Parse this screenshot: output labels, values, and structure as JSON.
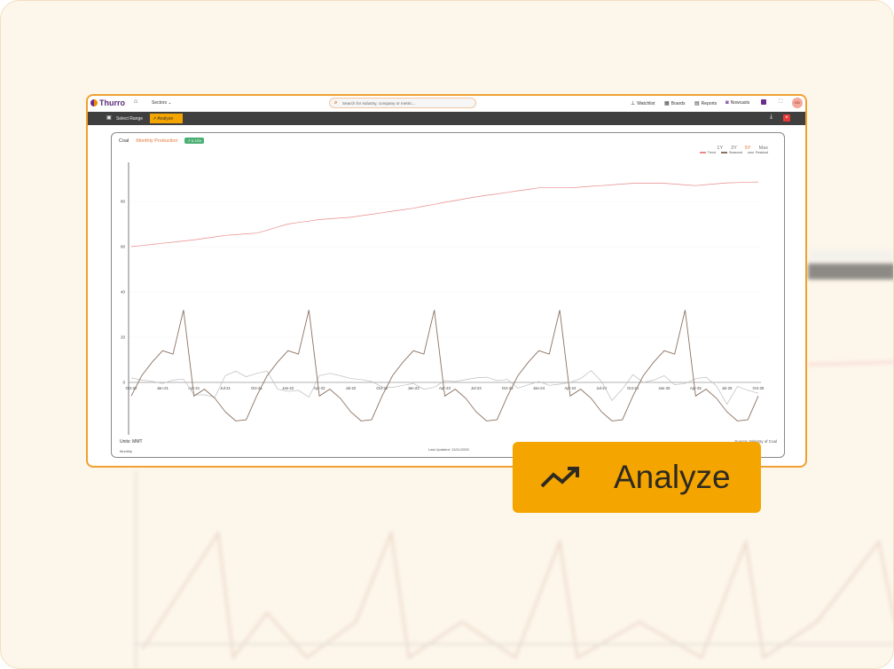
{
  "header": {
    "brand": "Thurro",
    "sectors": "Sectors",
    "search_placeholder": "Search for industry, company or metric...",
    "nav": [
      {
        "label": "Watchlist",
        "icon": "pin-icon"
      },
      {
        "label": "Boards",
        "icon": "boards-icon"
      },
      {
        "label": "Reports",
        "icon": "report-icon"
      },
      {
        "label": "Nowcasts",
        "icon": "nowcast-icon"
      }
    ],
    "avatar": "KD"
  },
  "toolbar": {
    "select_range": "Select Range",
    "analyze": "Analyze"
  },
  "chart_header": {
    "title": "Coal",
    "metric": "Monthly Production",
    "change": "6.13%",
    "ranges": [
      "1Y",
      "3Y",
      "5Y",
      "Max"
    ],
    "active_range": "5Y"
  },
  "footer": {
    "units": "Units:  MMT",
    "frequency": "Monthly",
    "updated": "Last Updated: 13/11/2025",
    "source": "Source: Ministry of Coal"
  },
  "overlay": {
    "label": "Analyze",
    "icon": "trending-up-icon"
  },
  "colors": {
    "accent": "#f5a500",
    "trend": "#e88a8a",
    "seasonal": "#8c7262",
    "residual": "#bdbdbd"
  },
  "chart_data": {
    "type": "line",
    "legend_position": "top-right",
    "grid": true,
    "ylim": [
      -23,
      97
    ],
    "y_ticks": [
      0,
      20,
      40,
      60,
      80
    ],
    "x_start": "Oct-20",
    "x_ticks": [
      "Oct-20",
      "Jan-21",
      "Apr-21",
      "Jul-21",
      "Oct-21",
      "Jan-22",
      "Apr-22",
      "Jul-22",
      "Oct-22",
      "Jan-23",
      "Apr-23",
      "Jul-23",
      "Oct-23",
      "Jan-24",
      "Apr-24",
      "Jul-24",
      "Oct-24",
      "Jan-25",
      "Apr-25",
      "Jul-25",
      "Oct-25"
    ],
    "series": [
      {
        "name": "Trend",
        "values": [
          60,
          60.5,
          61,
          61.5,
          62,
          62.5,
          63,
          63.7,
          64.3,
          65,
          65.3,
          65.7,
          66,
          67.3,
          68.7,
          70,
          70.7,
          71.3,
          72,
          72.3,
          72.7,
          73,
          73.7,
          74.3,
          75,
          75.7,
          76.3,
          77,
          77.9,
          78.7,
          79.6,
          80.4,
          81.2,
          82,
          82.7,
          83.3,
          84,
          84.7,
          85.3,
          86,
          86,
          86,
          86,
          86.3,
          86.7,
          87,
          87.3,
          87.7,
          88,
          88,
          88,
          88,
          87.7,
          87.3,
          87,
          87.4,
          87.8,
          88.2,
          88.3,
          88.5,
          88.6
        ]
      },
      {
        "name": "Seasonal",
        "values": [
          -6,
          3,
          9,
          14,
          12.5,
          32,
          -6,
          -3,
          -7,
          -13,
          -17,
          -16.5,
          -6,
          3,
          9,
          14,
          12.5,
          32,
          -6,
          -3,
          -7,
          -13,
          -17,
          -16.5,
          -6,
          3,
          9,
          14,
          12.5,
          32,
          -6,
          -3,
          -7,
          -13,
          -17,
          -16.5,
          -6,
          3,
          9,
          14,
          12.5,
          32,
          -6,
          -3,
          -7,
          -13,
          -17,
          -16.5,
          -6,
          3,
          9,
          14,
          12.5,
          32,
          -6,
          -3,
          -7,
          -13,
          -17,
          -16.5,
          -6
        ]
      },
      {
        "name": "Residual",
        "values": [
          2,
          1,
          0.5,
          -0.5,
          1,
          1.5,
          -5.5,
          -5.5,
          -6.5,
          3,
          5,
          2.5,
          4,
          5,
          -3,
          -4,
          -3.5,
          -6.5,
          3,
          4,
          3,
          1.7,
          1.3,
          0.4,
          -2,
          -2.2,
          -1.3,
          -0.5,
          -3,
          -2.2,
          0.8,
          0.4,
          1.2,
          2,
          2.3,
          0.8,
          1.3,
          -2.6,
          -1,
          0.4,
          -1.3,
          -0.8,
          0,
          1.7,
          5.2,
          0.4,
          -8,
          -2.9,
          3.4,
          0,
          1,
          3,
          -1,
          -0.5,
          1.7,
          2.3,
          -1.5,
          -9.7,
          -1.8,
          -3.5,
          -4.8
        ]
      }
    ]
  }
}
